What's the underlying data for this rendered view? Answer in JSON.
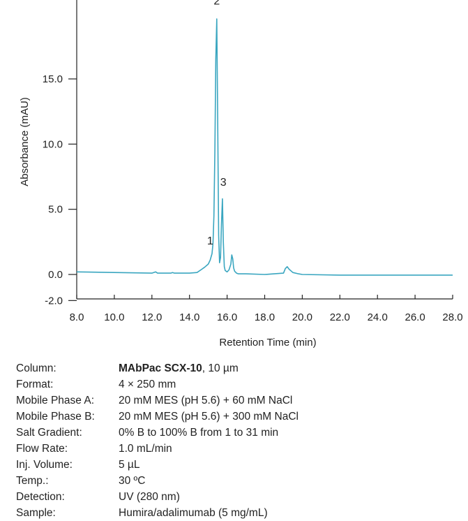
{
  "chart_data": {
    "type": "line",
    "xlabel": "Retention Time (min)",
    "ylabel": "Absorbance (mAU)",
    "xlim": [
      8.0,
      28.0
    ],
    "ylim": [
      -2.0,
      20.0
    ],
    "x_ticks": [
      "8.0",
      "10.0",
      "12.0",
      "14.0",
      "16.0",
      "18.0",
      "20.0",
      "22.0",
      "24.0",
      "26.0",
      "28.0"
    ],
    "y_ticks": [
      "-2.0",
      "0.0",
      "5.0",
      "10.0",
      "15.0"
    ],
    "line_color": "#3aa6c0",
    "grid": false,
    "series": [
      {
        "x": [
          8.0,
          10.0,
          12.0,
          12.2,
          12.3,
          12.5,
          13.0,
          13.1,
          13.2,
          14.0,
          14.4,
          14.6,
          14.8,
          15.0,
          15.1,
          15.2,
          15.25,
          15.3,
          15.35,
          15.4,
          15.45,
          15.5,
          15.55,
          15.6,
          15.65,
          15.7,
          15.75,
          15.8,
          15.85,
          15.9,
          16.0,
          16.1,
          16.2,
          16.25,
          16.3,
          16.35,
          16.4,
          16.5,
          16.6,
          17.0,
          18.0,
          19.0,
          19.1,
          19.2,
          19.3,
          19.5,
          19.8,
          20.0,
          22.0,
          24.0,
          26.0,
          28.0
        ],
        "y": [
          0.2,
          0.15,
          0.1,
          0.2,
          0.1,
          0.1,
          0.1,
          0.15,
          0.1,
          0.1,
          0.15,
          0.35,
          0.55,
          0.8,
          1.1,
          1.6,
          2.4,
          4.5,
          9.5,
          16.5,
          19.6,
          12.0,
          3.0,
          0.9,
          1.3,
          3.8,
          5.8,
          2.5,
          0.6,
          0.3,
          0.2,
          0.35,
          0.8,
          1.5,
          1.2,
          0.5,
          0.25,
          0.1,
          0.05,
          0.05,
          0.0,
          0.1,
          0.45,
          0.6,
          0.4,
          0.15,
          0.05,
          0.0,
          -0.05,
          -0.05,
          -0.05,
          -0.05
        ]
      }
    ],
    "annotations": [
      {
        "label": "1",
        "x": 15.1,
        "y": 2.3
      },
      {
        "label": "2",
        "x": 15.45,
        "y": 20.7
      },
      {
        "label": "3",
        "x": 15.8,
        "y": 6.8
      }
    ]
  },
  "parameters": [
    {
      "label": "Column:",
      "value_bold": "MAbPac SCX-10",
      "value": ", 10 µm"
    },
    {
      "label": "Format:",
      "value_bold": "",
      "value": "4 × 250 mm"
    },
    {
      "label": "Mobile Phase A:",
      "value_bold": "",
      "value": "20 mM MES (pH 5.6) + 60 mM NaCl"
    },
    {
      "label": "Mobile Phase B:",
      "value_bold": "",
      "value": "20 mM MES (pH 5.6) + 300 mM NaCl"
    },
    {
      "label": "Salt Gradient:",
      "value_bold": "",
      "value": "0% B to 100% B from 1 to 31 min"
    },
    {
      "label": "Flow Rate:",
      "value_bold": "",
      "value": "1.0 mL/min"
    },
    {
      "label": "Inj. Volume:",
      "value_bold": "",
      "value": "5 µL"
    },
    {
      "label": "Temp.:",
      "value_bold": "",
      "value": "30 ºC"
    },
    {
      "label": "Detection:",
      "value_bold": "",
      "value": "UV (280 nm)"
    },
    {
      "label": "Sample:",
      "value_bold": "",
      "value": "Humira/adalimumab (5 mg/mL)"
    }
  ]
}
